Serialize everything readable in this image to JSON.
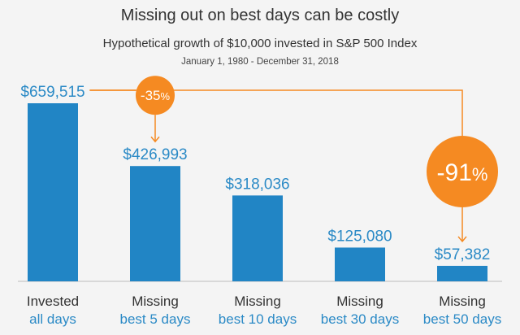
{
  "chart_data": {
    "type": "bar",
    "title": "Missing out on best days can be costly",
    "subtitle": "Hypothetical growth of $10,000 invested in S&P 500 Index",
    "date_range": "January 1, 1980 - December 31, 2018",
    "categories": [
      [
        "Invested",
        "all days"
      ],
      [
        "Missing",
        "best 5 days"
      ],
      [
        "Missing",
        "best 10 days"
      ],
      [
        "Missing",
        "best 30 days"
      ],
      [
        "Missing",
        "best 50 days"
      ]
    ],
    "values": [
      659515,
      426993,
      318036,
      125080,
      57382
    ],
    "value_labels": [
      "$659,515",
      "$426,993",
      "$318,036",
      "$125,080",
      "$57,382"
    ],
    "annotations": [
      {
        "text": "-35",
        "suffix": "%",
        "from_index": 0,
        "to_index": 1
      },
      {
        "text": "-91",
        "suffix": "%",
        "from_index": 0,
        "to_index": 4
      }
    ],
    "grid": false,
    "legend": "none",
    "colors": {
      "bar": "#2185c5",
      "accent": "#f58a22",
      "value_text": "#2b8ac6",
      "text": "#333333",
      "background": "#f4f4f4"
    }
  }
}
